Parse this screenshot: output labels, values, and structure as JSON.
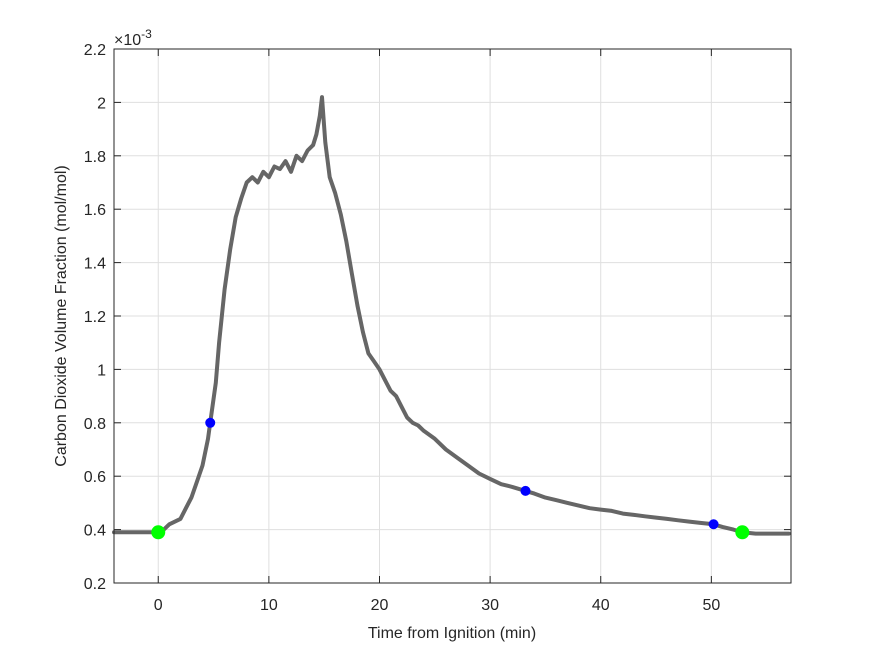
{
  "chart_data": {
    "type": "line",
    "title": "",
    "xlabel": "Time from Ignition (min)",
    "ylabel": "Carbon Dioxide Volume Fraction (mol/mol)",
    "y_exponent_label": "×10",
    "y_exponent": "-3",
    "xlim": [
      -4,
      57.2
    ],
    "ylim": [
      0.2,
      2.2
    ],
    "xticks": [
      0,
      10,
      20,
      30,
      40,
      50
    ],
    "yticks": [
      0.2,
      0.4,
      0.6,
      0.8,
      1,
      1.2,
      1.4,
      1.6,
      1.8,
      2,
      2.2
    ],
    "ytick_labels": [
      "0.2",
      "0.4",
      "0.6",
      "0.8",
      "1",
      "1.2",
      "1.4",
      "1.6",
      "1.8",
      "2",
      "2.2"
    ],
    "grid": true,
    "series": [
      {
        "name": "CO2 volume fraction",
        "color": "#666666",
        "x": [
          -4,
          -2,
          0,
          0.5,
          1,
          2,
          2.5,
          3,
          3.5,
          4,
          4.5,
          4.7,
          5.2,
          5.5,
          6,
          6.5,
          7,
          7.5,
          8,
          8.5,
          9,
          9.5,
          10,
          10.5,
          11,
          11.5,
          12,
          12.5,
          13,
          13.5,
          14,
          14.3,
          14.6,
          14.8,
          15.1,
          15.5,
          16,
          16.5,
          17,
          17.5,
          18,
          18.5,
          19,
          19.5,
          20,
          20.5,
          21,
          21.5,
          22,
          22.5,
          23,
          23.5,
          24,
          25,
          26,
          27,
          28,
          29,
          30,
          31,
          32,
          33.2,
          34,
          35,
          36,
          37,
          38,
          39,
          40,
          41,
          42,
          43,
          44,
          45,
          46,
          47,
          48,
          49,
          50.2,
          51,
          52,
          52.8,
          54,
          55,
          57
        ],
        "y": [
          0.39,
          0.39,
          0.39,
          0.4,
          0.42,
          0.44,
          0.48,
          0.52,
          0.58,
          0.64,
          0.74,
          0.8,
          0.95,
          1.1,
          1.3,
          1.45,
          1.57,
          1.64,
          1.7,
          1.72,
          1.7,
          1.74,
          1.72,
          1.76,
          1.75,
          1.78,
          1.74,
          1.8,
          1.78,
          1.82,
          1.84,
          1.88,
          1.95,
          2.02,
          1.85,
          1.72,
          1.66,
          1.58,
          1.48,
          1.36,
          1.24,
          1.14,
          1.06,
          1.03,
          1.0,
          0.96,
          0.92,
          0.9,
          0.86,
          0.82,
          0.8,
          0.79,
          0.77,
          0.74,
          0.7,
          0.67,
          0.64,
          0.61,
          0.59,
          0.57,
          0.56,
          0.545,
          0.535,
          0.52,
          0.51,
          0.5,
          0.49,
          0.48,
          0.475,
          0.47,
          0.46,
          0.455,
          0.45,
          0.445,
          0.44,
          0.435,
          0.43,
          0.425,
          0.42,
          0.41,
          0.4,
          0.39,
          0.385,
          0.385,
          0.385
        ]
      },
      {
        "name": "green markers",
        "color": "#00ff00",
        "type": "scatter",
        "x": [
          0,
          52.8
        ],
        "y": [
          0.39,
          0.39
        ]
      },
      {
        "name": "blue markers",
        "color": "#0000ff",
        "type": "scatter",
        "x": [
          4.7,
          33.2,
          50.2
        ],
        "y": [
          0.8,
          0.545,
          0.42
        ]
      }
    ]
  }
}
